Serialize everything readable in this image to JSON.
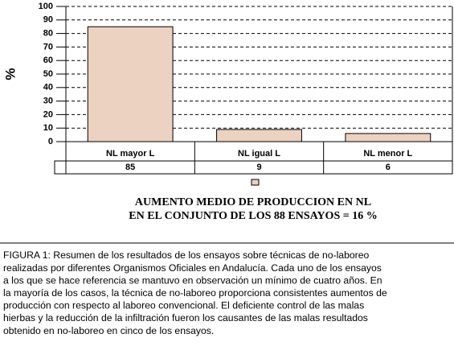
{
  "chart_data": {
    "type": "bar",
    "y_label": "%",
    "categories": [
      "NL mayor L",
      "NL igual L",
      "NL menor L"
    ],
    "values": [
      85,
      9,
      6
    ],
    "color": "#ecd2c1",
    "ylim": [
      0,
      100
    ],
    "yticks": [
      0,
      10,
      20,
      30,
      40,
      50,
      60,
      70,
      80,
      90,
      100
    ],
    "grid": true,
    "annotation": [
      "AUMENTO MEDIO DE PRODUCCION EN NL",
      "EN EL CONJUNTO DE LOS 88 ENSAYOS = 16 %"
    ],
    "caption": [
      "FIGURA 1: Resumen de los resultados de los ensayos sobre técnicas de no-laboreo",
      "realizadas por diferentes Organismos Oficiales en Andalucía. Cada uno de los ensayos",
      "a los que se hace referencia se mantuvo en observación un mínimo de cuatro años. En",
      "la mayoría de los casos, la técnica de no-laboreo proporciona consistentes aumentos de",
      "producción con respecto al laboreo convencional. El deficiente control de las malas",
      "hierbas y la reducción de la infiltración fueron los causantes de las malas resultados",
      "obtenido en no-laboreo en cinco de los ensayos."
    ]
  }
}
